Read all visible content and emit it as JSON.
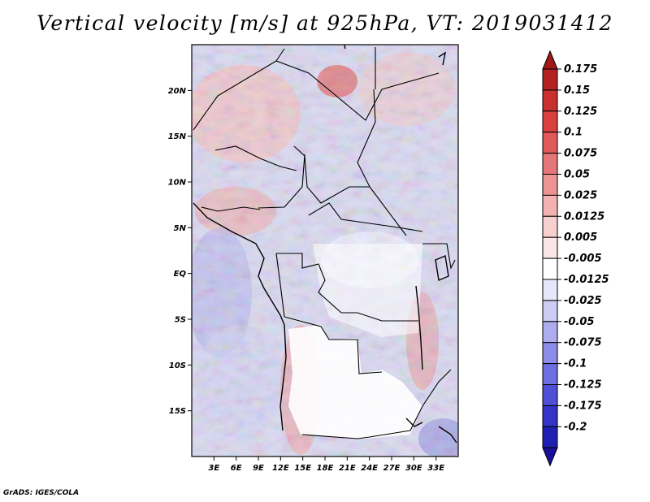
{
  "title": "Vertical velocity [m/s] at 925hPa, VT: 2019031412",
  "credit": "GrADS: IGES/COLA",
  "map": {
    "lon_range": [
      0,
      36
    ],
    "lat_range": [
      -20,
      25
    ],
    "lat_ticks": [
      {
        "value": 20,
        "label": "20N"
      },
      {
        "value": 15,
        "label": "15N"
      },
      {
        "value": 10,
        "label": "10N"
      },
      {
        "value": 5,
        "label": "5N"
      },
      {
        "value": 0,
        "label": "EQ"
      },
      {
        "value": -5,
        "label": "5S"
      },
      {
        "value": -10,
        "label": "10S"
      },
      {
        "value": -15,
        "label": "15S"
      }
    ],
    "lon_ticks": [
      {
        "value": 3,
        "label": "3E"
      },
      {
        "value": 6,
        "label": "6E"
      },
      {
        "value": 9,
        "label": "9E"
      },
      {
        "value": 12,
        "label": "12E"
      },
      {
        "value": 15,
        "label": "15E"
      },
      {
        "value": 18,
        "label": "18E"
      },
      {
        "value": 21,
        "label": "21E"
      },
      {
        "value": 24,
        "label": "24E"
      },
      {
        "value": 27,
        "label": "27E"
      },
      {
        "value": 30,
        "label": "30E"
      },
      {
        "value": 33,
        "label": "33E"
      }
    ]
  },
  "colorbar": {
    "top_color": "#a01818",
    "bottom_color": "#1a0f9a",
    "levels": [
      {
        "label": "0.175",
        "color": "#b22222"
      },
      {
        "label": "0.15",
        "color": "#c83030"
      },
      {
        "label": "0.125",
        "color": "#da4040"
      },
      {
        "label": "0.1",
        "color": "#e05a5a"
      },
      {
        "label": "0.075",
        "color": "#e47878"
      },
      {
        "label": "0.05",
        "color": "#ec9494"
      },
      {
        "label": "0.025",
        "color": "#f3b2b2"
      },
      {
        "label": "0.0125",
        "color": "#f8cfcf"
      },
      {
        "label": "0.005",
        "color": "#fbe6e6"
      },
      {
        "label": "-0.005",
        "color": "#ffffff"
      },
      {
        "label": "-0.0125",
        "color": "#e7e7fa"
      },
      {
        "label": "-0.025",
        "color": "#ccccf4"
      },
      {
        "label": "-0.05",
        "color": "#acacee"
      },
      {
        "label": "-0.075",
        "color": "#8c8ce8"
      },
      {
        "label": "-0.1",
        "color": "#6e6ee0"
      },
      {
        "label": "-0.125",
        "color": "#5050d6"
      },
      {
        "label": "-0.175",
        "color": "#3434c6"
      },
      {
        "label": "-0.2",
        "color": "#2020b0"
      }
    ]
  }
}
